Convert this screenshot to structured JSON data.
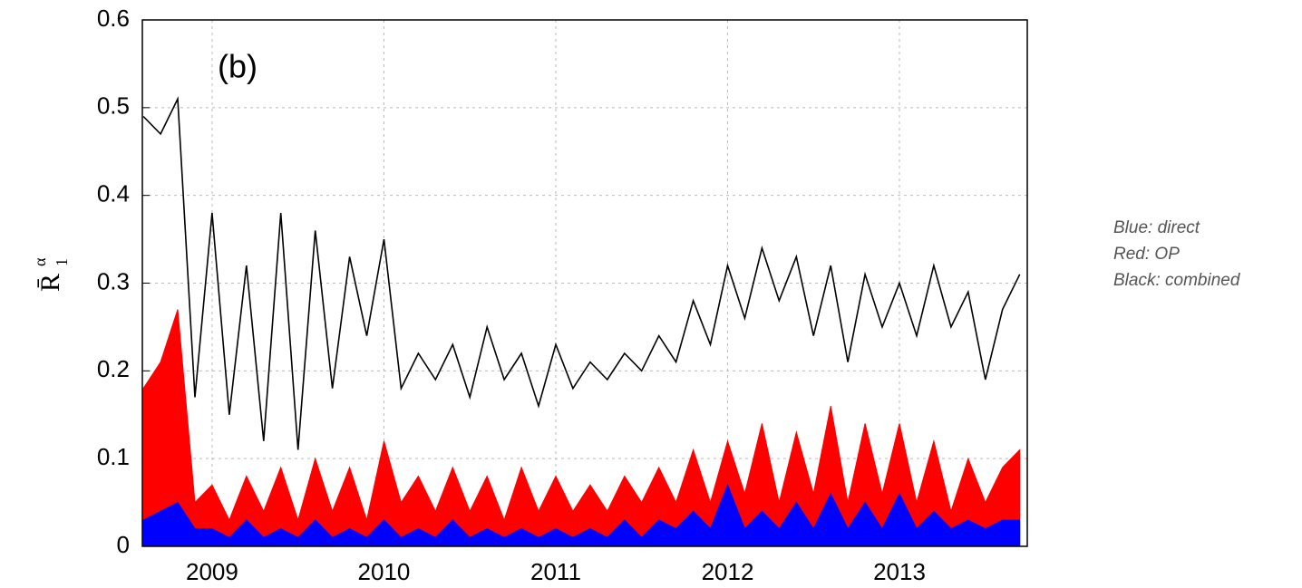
{
  "chart_data": {
    "type": "line",
    "annotation": "(b)",
    "ylabel": "R̄",
    "ylabel_superscript": "α",
    "ylabel_subscript": "1",
    "x": [
      2008.6,
      2008.7,
      2008.8,
      2008.9,
      2009.0,
      2009.1,
      2009.2,
      2009.3,
      2009.4,
      2009.5,
      2009.6,
      2009.7,
      2009.8,
      2009.9,
      2010.0,
      2010.1,
      2010.2,
      2010.3,
      2010.4,
      2010.5,
      2010.6,
      2010.7,
      2010.8,
      2010.9,
      2011.0,
      2011.1,
      2011.2,
      2011.3,
      2011.4,
      2011.5,
      2011.6,
      2011.7,
      2011.8,
      2011.9,
      2012.0,
      2012.1,
      2012.2,
      2012.3,
      2012.4,
      2012.5,
      2012.6,
      2012.7,
      2012.8,
      2012.9,
      2013.0,
      2013.1,
      2013.2,
      2013.3,
      2013.4,
      2013.5,
      2013.6,
      2013.7
    ],
    "series": [
      {
        "name": "Red: OP",
        "color": "#ff0000",
        "area": true,
        "values": [
          0.18,
          0.21,
          0.27,
          0.05,
          0.07,
          0.03,
          0.08,
          0.04,
          0.09,
          0.03,
          0.1,
          0.04,
          0.09,
          0.03,
          0.12,
          0.05,
          0.08,
          0.04,
          0.09,
          0.04,
          0.08,
          0.03,
          0.09,
          0.04,
          0.08,
          0.04,
          0.07,
          0.04,
          0.08,
          0.05,
          0.09,
          0.05,
          0.11,
          0.05,
          0.12,
          0.06,
          0.14,
          0.05,
          0.13,
          0.06,
          0.16,
          0.05,
          0.14,
          0.06,
          0.14,
          0.05,
          0.12,
          0.04,
          0.1,
          0.05,
          0.09,
          0.11
        ]
      },
      {
        "name": "Blue: direct",
        "color": "#0000ff",
        "area": true,
        "values": [
          0.03,
          0.04,
          0.05,
          0.02,
          0.02,
          0.01,
          0.03,
          0.01,
          0.02,
          0.01,
          0.03,
          0.01,
          0.02,
          0.01,
          0.03,
          0.01,
          0.02,
          0.01,
          0.03,
          0.01,
          0.02,
          0.01,
          0.02,
          0.01,
          0.02,
          0.01,
          0.02,
          0.01,
          0.03,
          0.01,
          0.03,
          0.02,
          0.04,
          0.02,
          0.07,
          0.02,
          0.04,
          0.02,
          0.05,
          0.02,
          0.06,
          0.02,
          0.05,
          0.02,
          0.06,
          0.02,
          0.04,
          0.02,
          0.03,
          0.02,
          0.03,
          0.03
        ]
      },
      {
        "name": "Black: combined",
        "color": "#000000",
        "area": false,
        "values": [
          0.49,
          0.47,
          0.51,
          0.17,
          0.38,
          0.15,
          0.32,
          0.12,
          0.38,
          0.11,
          0.36,
          0.18,
          0.33,
          0.24,
          0.35,
          0.18,
          0.22,
          0.19,
          0.23,
          0.17,
          0.25,
          0.19,
          0.22,
          0.16,
          0.23,
          0.18,
          0.21,
          0.19,
          0.22,
          0.2,
          0.24,
          0.21,
          0.28,
          0.23,
          0.32,
          0.26,
          0.34,
          0.28,
          0.33,
          0.24,
          0.32,
          0.21,
          0.31,
          0.25,
          0.3,
          0.24,
          0.32,
          0.25,
          0.29,
          0.19,
          0.27,
          0.31
        ]
      }
    ],
    "legend_order": [
      1,
      0,
      2
    ],
    "xlim": [
      2008.594,
      2013.744
    ],
    "xticks": [
      2009,
      2010,
      2011,
      2012,
      2013
    ],
    "ylim": [
      0,
      0.6
    ],
    "yticks": [
      0,
      0.1,
      0.2,
      0.3,
      0.4,
      0.5,
      0.6
    ],
    "grid": true
  }
}
